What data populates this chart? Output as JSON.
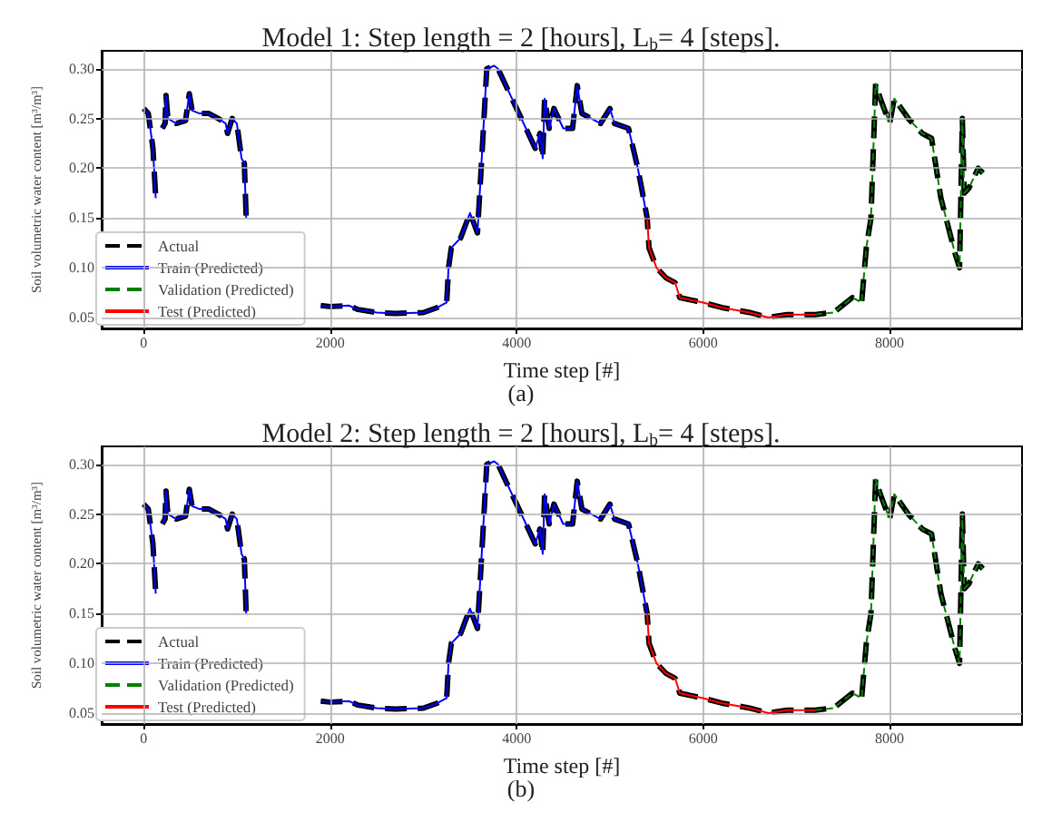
{
  "chart_data": [
    {
      "type": "line",
      "title": "Model 1: Step length = 2 [hours], L$_{b}$= 4 [steps].",
      "xlabel": "Time step [#]",
      "ylabel": "Soil volumetric water content [m³/m³]",
      "annotations": [
        "(a)"
      ],
      "x": [
        0,
        50,
        100,
        130,
        160,
        200,
        230,
        240,
        260,
        350,
        450,
        490,
        520,
        600,
        700,
        800,
        880,
        900,
        950,
        1000,
        1050,
        1080,
        1100,
        1500,
        1900,
        2000,
        2200,
        2300,
        2500,
        2700,
        3000,
        3150,
        3250,
        3270,
        3300,
        3400,
        3500,
        3580,
        3620,
        3680,
        3760,
        3800,
        3900,
        4000,
        4100,
        4150,
        4200,
        4250,
        4280,
        4300,
        4350,
        4400,
        4500,
        4600,
        4650,
        4700,
        4900,
        5000,
        5050,
        5200,
        5300,
        5400,
        5420,
        5500,
        5600,
        5700,
        5750,
        6000,
        6200,
        6500,
        6700,
        6900,
        7200,
        7400,
        7600,
        7700,
        7750,
        7800,
        7850,
        7900,
        8000,
        8050,
        8200,
        8350,
        8450,
        8550,
        8700,
        8750,
        8780,
        8800,
        8850,
        8950,
        9000
      ],
      "series": [
        {
          "name": "Actual",
          "color": "#000000",
          "line_style": "dashed",
          "values": [
            0.26,
            0.255,
            0.22,
            0.17,
            null,
            0.24,
            0.245,
            0.273,
            0.25,
            0.245,
            0.248,
            0.275,
            0.258,
            0.255,
            0.255,
            0.25,
            0.245,
            0.235,
            0.25,
            0.245,
            0.21,
            0.205,
            0.15,
            null,
            0.062,
            0.061,
            0.062,
            0.058,
            0.055,
            0.054,
            0.055,
            0.06,
            0.065,
            0.1,
            0.12,
            0.13,
            0.155,
            0.135,
            0.2,
            0.3,
            0.303,
            0.3,
            0.28,
            0.26,
            0.24,
            0.23,
            0.22,
            0.235,
            0.21,
            0.27,
            0.24,
            0.26,
            0.24,
            0.24,
            0.283,
            0.255,
            0.245,
            0.26,
            0.245,
            0.24,
            0.2,
            0.15,
            0.12,
            0.1,
            0.09,
            0.085,
            0.07,
            0.065,
            0.06,
            0.055,
            0.05,
            0.053,
            0.053,
            0.055,
            0.07,
            0.065,
            0.12,
            0.15,
            0.285,
            0.27,
            0.245,
            0.27,
            0.25,
            0.235,
            0.23,
            0.17,
            0.115,
            0.1,
            0.25,
            0.175,
            0.18,
            0.2,
            0.195
          ]
        },
        {
          "name": "Train (Predicted)",
          "color": "#0000ff",
          "line_style": "solid",
          "values": [
            0.26,
            0.255,
            0.22,
            0.17,
            null,
            0.24,
            0.245,
            0.273,
            0.25,
            0.245,
            0.248,
            0.275,
            0.258,
            0.255,
            0.255,
            0.25,
            0.245,
            0.235,
            0.25,
            0.245,
            0.21,
            0.205,
            0.15,
            null,
            0.062,
            0.061,
            0.062,
            0.058,
            0.055,
            0.054,
            0.055,
            0.06,
            0.065,
            0.1,
            0.12,
            0.13,
            0.155,
            0.135,
            0.2,
            0.3,
            0.303,
            0.3,
            0.28,
            0.26,
            0.24,
            0.23,
            0.22,
            0.235,
            0.21,
            0.27,
            0.24,
            0.26,
            0.24,
            0.24,
            0.283,
            0.255,
            0.245,
            0.26,
            0.245,
            0.24,
            0.2,
            0.15,
            null,
            null,
            null,
            null,
            null,
            null,
            null,
            null,
            null,
            null,
            null,
            null,
            null,
            null,
            null,
            null,
            null,
            null,
            null,
            null,
            null,
            null,
            null,
            null,
            null,
            null,
            null,
            null,
            null,
            null,
            null
          ]
        },
        {
          "name": "Validation (Predicted)",
          "color": "#008000",
          "line_style": "dashed",
          "values": [
            null,
            null,
            null,
            null,
            null,
            null,
            null,
            null,
            null,
            null,
            null,
            null,
            null,
            null,
            null,
            null,
            null,
            null,
            null,
            null,
            null,
            null,
            null,
            null,
            null,
            null,
            null,
            null,
            null,
            null,
            null,
            null,
            null,
            null,
            null,
            null,
            null,
            null,
            null,
            null,
            null,
            null,
            null,
            null,
            null,
            null,
            null,
            null,
            null,
            null,
            null,
            null,
            null,
            null,
            null,
            null,
            null,
            null,
            null,
            null,
            null,
            null,
            null,
            null,
            null,
            null,
            null,
            null,
            null,
            null,
            null,
            null,
            0.053,
            0.055,
            0.07,
            0.065,
            0.12,
            0.15,
            0.285,
            0.27,
            0.245,
            0.27,
            0.25,
            0.235,
            0.23,
            0.17,
            0.115,
            0.1,
            0.25,
            0.175,
            0.18,
            0.2,
            0.195
          ]
        },
        {
          "name": "Test (Predicted)",
          "color": "#ff0000",
          "line_style": "solid",
          "values": [
            null,
            null,
            null,
            null,
            null,
            null,
            null,
            null,
            null,
            null,
            null,
            null,
            null,
            null,
            null,
            null,
            null,
            null,
            null,
            null,
            null,
            null,
            null,
            null,
            null,
            null,
            null,
            null,
            null,
            null,
            null,
            null,
            null,
            null,
            null,
            null,
            null,
            null,
            null,
            null,
            null,
            null,
            null,
            null,
            null,
            null,
            null,
            null,
            null,
            null,
            null,
            null,
            null,
            null,
            null,
            null,
            null,
            null,
            null,
            null,
            null,
            0.15,
            0.12,
            0.1,
            0.09,
            0.085,
            0.07,
            0.065,
            0.06,
            0.055,
            0.05,
            0.053,
            0.053,
            null,
            null,
            null,
            null,
            null,
            null,
            null,
            null,
            null,
            null,
            null,
            null,
            null,
            null,
            null,
            null,
            null,
            null,
            null,
            null
          ]
        }
      ],
      "xlim": [
        -450,
        9420
      ],
      "ylim": [
        0.039,
        0.318
      ],
      "xticks": [
        0,
        2000,
        4000,
        6000,
        8000
      ],
      "yticks": [
        {
          "value": 0.05,
          "label": "0.05"
        },
        {
          "value": 0.1,
          "label": "0.10"
        },
        {
          "value": 0.15,
          "label": "0.15"
        },
        {
          "value": 0.2,
          "label": "0.20"
        },
        {
          "value": 0.25,
          "label": "0.25"
        },
        {
          "value": 0.3,
          "label": "0.30"
        }
      ],
      "grid": true,
      "legend": "bottom left"
    },
    {
      "type": "line",
      "title": "Model 2: Step length = 2 [hours], L$_{b}$= 4 [steps].",
      "xlabel": "Time step [#]",
      "ylabel": "Soil volumetric water content [m³/m³]",
      "annotations": [
        "(b)"
      ],
      "x": [
        0,
        50,
        100,
        130,
        160,
        200,
        230,
        240,
        260,
        350,
        450,
        490,
        520,
        600,
        700,
        800,
        880,
        900,
        950,
        1000,
        1050,
        1080,
        1100,
        1500,
        1900,
        2000,
        2200,
        2300,
        2500,
        2700,
        3000,
        3150,
        3250,
        3270,
        3300,
        3400,
        3500,
        3580,
        3620,
        3680,
        3760,
        3800,
        3900,
        4000,
        4100,
        4150,
        4200,
        4250,
        4280,
        4300,
        4350,
        4400,
        4500,
        4600,
        4650,
        4700,
        4900,
        5000,
        5050,
        5200,
        5300,
        5400,
        5420,
        5500,
        5600,
        5700,
        5750,
        6000,
        6200,
        6500,
        6700,
        6900,
        7200,
        7400,
        7600,
        7700,
        7750,
        7800,
        7850,
        7900,
        8000,
        8050,
        8200,
        8350,
        8450,
        8550,
        8700,
        8750,
        8780,
        8800,
        8850,
        8950,
        9000
      ],
      "series": [
        {
          "name": "Actual",
          "color": "#000000",
          "line_style": "dashed",
          "values": [
            0.26,
            0.255,
            0.22,
            0.17,
            null,
            0.24,
            0.245,
            0.273,
            0.25,
            0.245,
            0.248,
            0.275,
            0.258,
            0.255,
            0.255,
            0.25,
            0.245,
            0.235,
            0.25,
            0.245,
            0.21,
            0.205,
            0.15,
            null,
            0.062,
            0.061,
            0.062,
            0.058,
            0.055,
            0.054,
            0.055,
            0.06,
            0.065,
            0.1,
            0.12,
            0.13,
            0.155,
            0.135,
            0.2,
            0.3,
            0.303,
            0.3,
            0.28,
            0.26,
            0.24,
            0.23,
            0.22,
            0.235,
            0.21,
            0.27,
            0.24,
            0.26,
            0.24,
            0.24,
            0.283,
            0.255,
            0.245,
            0.26,
            0.245,
            0.24,
            0.2,
            0.15,
            0.12,
            0.1,
            0.09,
            0.085,
            0.07,
            0.065,
            0.06,
            0.055,
            0.05,
            0.053,
            0.053,
            0.055,
            0.07,
            0.065,
            0.12,
            0.15,
            0.285,
            0.27,
            0.245,
            0.27,
            0.25,
            0.235,
            0.23,
            0.17,
            0.115,
            0.1,
            0.25,
            0.175,
            0.18,
            0.2,
            0.195
          ]
        },
        {
          "name": "Train (Predicted)",
          "color": "#0000ff",
          "line_style": "solid",
          "values": [
            0.26,
            0.255,
            0.22,
            0.17,
            null,
            0.24,
            0.245,
            0.273,
            0.25,
            0.245,
            0.248,
            0.275,
            0.258,
            0.255,
            0.255,
            0.25,
            0.245,
            0.235,
            0.25,
            0.245,
            0.21,
            0.205,
            0.15,
            null,
            0.062,
            0.061,
            0.062,
            0.058,
            0.055,
            0.054,
            0.055,
            0.06,
            0.065,
            0.1,
            0.12,
            0.13,
            0.155,
            0.135,
            0.2,
            0.3,
            0.303,
            0.3,
            0.28,
            0.26,
            0.24,
            0.23,
            0.22,
            0.235,
            0.21,
            0.27,
            0.24,
            0.26,
            0.24,
            0.24,
            0.283,
            0.255,
            0.245,
            0.26,
            0.245,
            0.24,
            0.2,
            0.15,
            null,
            null,
            null,
            null,
            null,
            null,
            null,
            null,
            null,
            null,
            null,
            null,
            null,
            null,
            null,
            null,
            null,
            null,
            null,
            null,
            null,
            null,
            null,
            null,
            null,
            null,
            null,
            null,
            null,
            null,
            null
          ]
        },
        {
          "name": "Validation (Predicted)",
          "color": "#008000",
          "line_style": "dashed",
          "values": [
            null,
            null,
            null,
            null,
            null,
            null,
            null,
            null,
            null,
            null,
            null,
            null,
            null,
            null,
            null,
            null,
            null,
            null,
            null,
            null,
            null,
            null,
            null,
            null,
            null,
            null,
            null,
            null,
            null,
            null,
            null,
            null,
            null,
            null,
            null,
            null,
            null,
            null,
            null,
            null,
            null,
            null,
            null,
            null,
            null,
            null,
            null,
            null,
            null,
            null,
            null,
            null,
            null,
            null,
            null,
            null,
            null,
            null,
            null,
            null,
            null,
            null,
            null,
            null,
            null,
            null,
            null,
            null,
            null,
            null,
            null,
            null,
            0.053,
            0.055,
            0.07,
            0.065,
            0.12,
            0.15,
            0.285,
            0.27,
            0.245,
            0.27,
            0.25,
            0.235,
            0.23,
            0.17,
            0.115,
            0.1,
            0.25,
            0.175,
            0.18,
            0.2,
            0.195
          ]
        },
        {
          "name": "Test (Predicted)",
          "color": "#ff0000",
          "line_style": "solid",
          "values": [
            null,
            null,
            null,
            null,
            null,
            null,
            null,
            null,
            null,
            null,
            null,
            null,
            null,
            null,
            null,
            null,
            null,
            null,
            null,
            null,
            null,
            null,
            null,
            null,
            null,
            null,
            null,
            null,
            null,
            null,
            null,
            null,
            null,
            null,
            null,
            null,
            null,
            null,
            null,
            null,
            null,
            null,
            null,
            null,
            null,
            null,
            null,
            null,
            null,
            null,
            null,
            null,
            null,
            null,
            null,
            null,
            null,
            null,
            null,
            null,
            null,
            0.15,
            0.12,
            0.1,
            0.09,
            0.085,
            0.07,
            0.065,
            0.06,
            0.055,
            0.05,
            0.053,
            0.053,
            null,
            null,
            null,
            null,
            null,
            null,
            null,
            null,
            null,
            null,
            null,
            null,
            null,
            null,
            null,
            null,
            null,
            null,
            null,
            null
          ]
        }
      ],
      "xlim": [
        -450,
        9420
      ],
      "ylim": [
        0.039,
        0.318
      ],
      "xticks": [
        0,
        2000,
        4000,
        6000,
        8000
      ],
      "yticks": [
        {
          "value": 0.05,
          "label": "0.05"
        },
        {
          "value": 0.1,
          "label": "0.10"
        },
        {
          "value": 0.15,
          "label": "0.15"
        },
        {
          "value": 0.2,
          "label": "0.20"
        },
        {
          "value": 0.25,
          "label": "0.25"
        },
        {
          "value": 0.3,
          "label": "0.30"
        }
      ],
      "grid": true,
      "legend": "bottom left"
    }
  ]
}
